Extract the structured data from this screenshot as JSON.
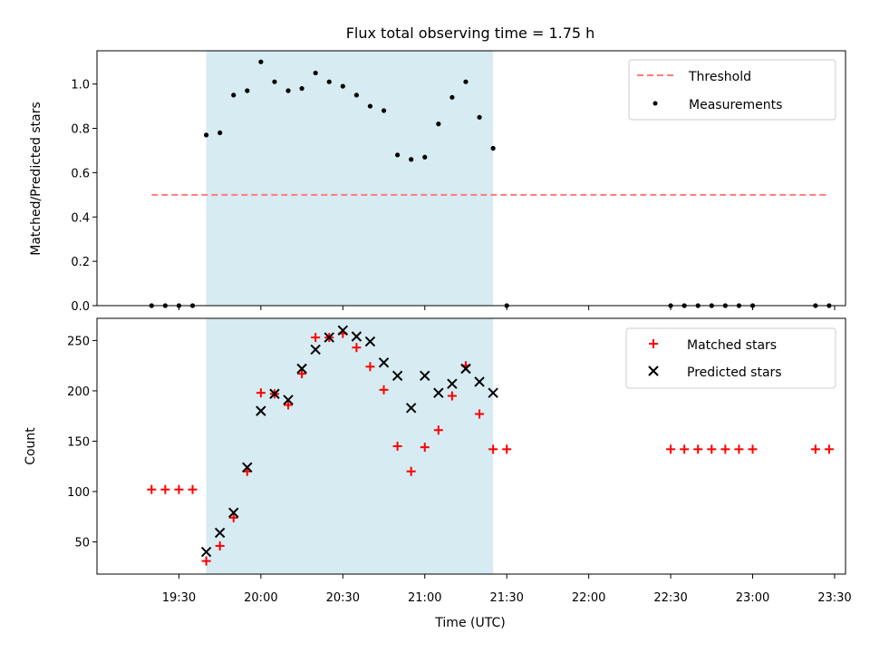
{
  "chart_data": [
    {
      "type": "scatter",
      "title": "Flux total observing time = 1.75 h",
      "xlabel": "",
      "ylabel": "Matched/Predicted stars",
      "ylim": [
        0,
        1.15
      ],
      "yticks": [
        0.0,
        0.2,
        0.4,
        0.6,
        0.8,
        1.0
      ],
      "ytick_labels": [
        "0.0",
        "0.2",
        "0.4",
        "0.6",
        "0.8",
        "1.0"
      ],
      "shaded_span": {
        "from": "19:40",
        "to": "21:25",
        "color": "#add8e6"
      },
      "threshold": {
        "name": "Threshold",
        "y": 0.5,
        "x_from": "19:20",
        "x_to": "23:28",
        "color": "#ff7b7b"
      },
      "legend": {
        "placement": "top-right",
        "entries": [
          "Threshold",
          "Measurements"
        ]
      },
      "series": [
        {
          "name": "Measurements",
          "color": "#000000",
          "points": [
            [
              "19:20",
              0.0
            ],
            [
              "19:25",
              0.0
            ],
            [
              "19:30",
              0.0
            ],
            [
              "19:35",
              0.0
            ],
            [
              "19:40",
              0.77
            ],
            [
              "19:45",
              0.78
            ],
            [
              "19:50",
              0.95
            ],
            [
              "19:55",
              0.97
            ],
            [
              "20:00",
              1.1
            ],
            [
              "20:05",
              1.01
            ],
            [
              "20:10",
              0.97
            ],
            [
              "20:15",
              0.98
            ],
            [
              "20:20",
              1.05
            ],
            [
              "20:25",
              1.01
            ],
            [
              "20:30",
              0.99
            ],
            [
              "20:35",
              0.95
            ],
            [
              "20:40",
              0.9
            ],
            [
              "20:45",
              0.88
            ],
            [
              "20:50",
              0.68
            ],
            [
              "20:55",
              0.66
            ],
            [
              "21:00",
              0.67
            ],
            [
              "21:05",
              0.82
            ],
            [
              "21:10",
              0.94
            ],
            [
              "21:15",
              1.01
            ],
            [
              "21:20",
              0.85
            ],
            [
              "21:25",
              0.71
            ],
            [
              "21:30",
              0.0
            ],
            [
              "22:30",
              0.0
            ],
            [
              "22:35",
              0.0
            ],
            [
              "22:40",
              0.0
            ],
            [
              "22:45",
              0.0
            ],
            [
              "22:50",
              0.0
            ],
            [
              "22:55",
              0.0
            ],
            [
              "23:00",
              0.0
            ],
            [
              "23:23",
              0.0
            ],
            [
              "23:28",
              0.0
            ]
          ]
        }
      ]
    },
    {
      "type": "scatter",
      "title": "",
      "xlabel": "Time (UTC)",
      "ylabel": "Count",
      "ylim": [
        18,
        272
      ],
      "yticks": [
        50,
        100,
        150,
        200,
        250
      ],
      "ytick_labels": [
        "50",
        "100",
        "150",
        "200",
        "250"
      ],
      "xlim": [
        "19:00",
        "23:34"
      ],
      "xticks": [
        "19:30",
        "20:00",
        "20:30",
        "21:00",
        "21:30",
        "22:00",
        "22:30",
        "23:00",
        "23:30"
      ],
      "shaded_span": {
        "from": "19:40",
        "to": "21:25",
        "color": "#add8e6"
      },
      "legend": {
        "placement": "top-right",
        "entries": [
          "Matched stars",
          "Predicted stars"
        ]
      },
      "series": [
        {
          "name": "Matched stars",
          "marker": "plus",
          "color": "#ff0000",
          "points": [
            [
              "19:20",
              102
            ],
            [
              "19:25",
              102
            ],
            [
              "19:30",
              102
            ],
            [
              "19:35",
              102
            ],
            [
              "19:40",
              31
            ],
            [
              "19:45",
              46
            ],
            [
              "19:50",
              74
            ],
            [
              "19:55",
              120
            ],
            [
              "20:00",
              198
            ],
            [
              "20:05",
              197
            ],
            [
              "20:10",
              186
            ],
            [
              "20:15",
              217
            ],
            [
              "20:20",
              253
            ],
            [
              "20:25",
              253
            ],
            [
              "20:30",
              257
            ],
            [
              "20:35",
              243
            ],
            [
              "20:40",
              224
            ],
            [
              "20:45",
              201
            ],
            [
              "20:50",
              145
            ],
            [
              "20:55",
              120
            ],
            [
              "21:00",
              144
            ],
            [
              "21:05",
              161
            ],
            [
              "21:10",
              195
            ],
            [
              "21:15",
              225
            ],
            [
              "21:20",
              177
            ],
            [
              "21:25",
              142
            ],
            [
              "21:30",
              142
            ],
            [
              "22:30",
              142
            ],
            [
              "22:35",
              142
            ],
            [
              "22:40",
              142
            ],
            [
              "22:45",
              142
            ],
            [
              "22:50",
              142
            ],
            [
              "22:55",
              142
            ],
            [
              "23:00",
              142
            ],
            [
              "23:23",
              142
            ],
            [
              "23:28",
              142
            ]
          ]
        },
        {
          "name": "Predicted stars",
          "marker": "x",
          "color": "#000000",
          "points": [
            [
              "19:40",
              40
            ],
            [
              "19:45",
              59
            ],
            [
              "19:50",
              79
            ],
            [
              "19:55",
              124
            ],
            [
              "20:00",
              180
            ],
            [
              "20:05",
              197
            ],
            [
              "20:10",
              191
            ],
            [
              "20:15",
              222
            ],
            [
              "20:20",
              241
            ],
            [
              "20:25",
              253
            ],
            [
              "20:30",
              260
            ],
            [
              "20:35",
              254
            ],
            [
              "20:40",
              249
            ],
            [
              "20:45",
              228
            ],
            [
              "20:50",
              215
            ],
            [
              "20:55",
              183
            ],
            [
              "21:00",
              215
            ],
            [
              "21:05",
              198
            ],
            [
              "21:10",
              207
            ],
            [
              "21:15",
              222
            ],
            [
              "21:20",
              209
            ],
            [
              "21:25",
              198
            ]
          ]
        }
      ]
    }
  ]
}
